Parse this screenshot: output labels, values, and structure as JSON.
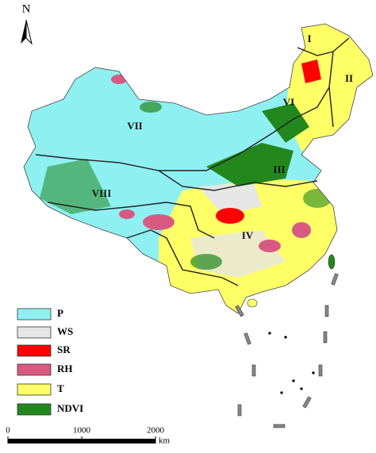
{
  "north_arrow": {
    "label": "N"
  },
  "regions": [
    {
      "label": "I"
    },
    {
      "label": "II"
    },
    {
      "label": "VI"
    },
    {
      "label": "VII"
    },
    {
      "label": "III"
    },
    {
      "label": "VIII"
    },
    {
      "label": "IV"
    }
  ],
  "legend": [
    {
      "label": "P",
      "color": "#8ff0f2"
    },
    {
      "label": "WS",
      "color": "#e6e6e6"
    },
    {
      "label": "SR",
      "color": "#ff0000"
    },
    {
      "label": "RH",
      "color": "#d85a82"
    },
    {
      "label": "T",
      "color": "#ffff66"
    },
    {
      "label": "NDVI",
      "color": "#22881e"
    }
  ],
  "scale_bar": {
    "ticks": [
      0,
      1000,
      2000
    ],
    "unit": "km"
  }
}
